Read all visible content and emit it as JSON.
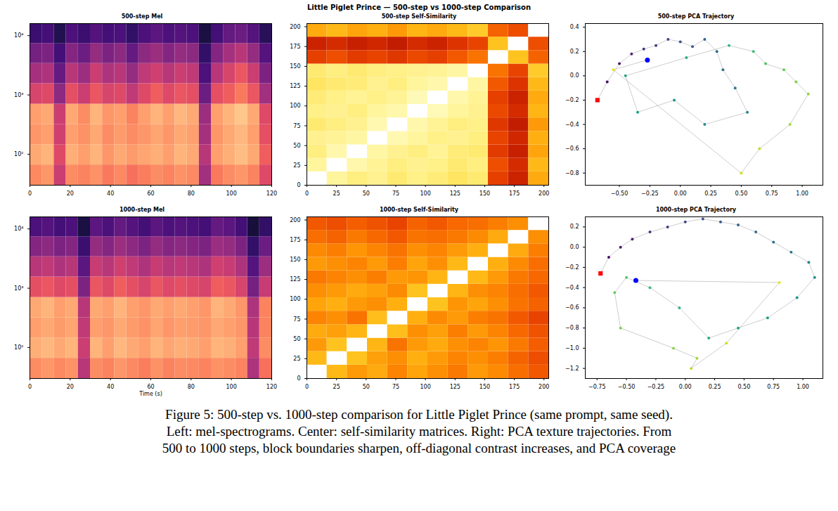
{
  "title": "Little Piglet Prince — 500-step vs 1000-step Comparison",
  "caption": [
    "Figure 5: 500-step vs. 1000-step comparison for Little Piglet Prince (same prompt, same seed).",
    "Left: mel-spectrograms. Center: self-similarity matrices. Right: PCA texture trajectories. From",
    "500 to 1000 steps, block boundaries sharpen, off-diagonal contrast increases, and PCA coverage"
  ],
  "chart_data": [
    {
      "type": "heatmap",
      "title": "500-step Mel",
      "log": "y",
      "color": "magma",
      "clim": [
        0,
        1
      ],
      "xlim": [
        0,
        120
      ],
      "xticks": [
        0,
        20,
        40,
        60,
        80,
        100,
        120
      ],
      "ylim": [
        30,
        16000
      ],
      "yticks": [
        {
          "value": 100,
          "label": "10²"
        },
        {
          "value": 1000,
          "label": "10³"
        },
        {
          "value": 10000,
          "label": "10⁴"
        }
      ],
      "x_edges": [
        0,
        6,
        12,
        18,
        24,
        30,
        36,
        42,
        48,
        54,
        60,
        66,
        72,
        78,
        84,
        90,
        96,
        102,
        108,
        114,
        120
      ],
      "y_edges": [
        30,
        66,
        145,
        320,
        700,
        1550,
        3400,
        7400,
        16000
      ],
      "cells": [
        [
          0.75,
          0.78,
          0.55,
          0.76,
          0.74,
          0.77,
          0.72,
          0.75,
          0.7,
          0.73,
          0.76,
          0.74,
          0.77,
          0.75,
          0.45,
          0.72,
          0.76,
          0.78,
          0.74,
          0.6
        ],
        [
          0.82,
          0.84,
          0.6,
          0.83,
          0.8,
          0.84,
          0.78,
          0.82,
          0.79,
          0.81,
          0.83,
          0.8,
          0.84,
          0.82,
          0.5,
          0.8,
          0.83,
          0.86,
          0.82,
          0.66
        ],
        [
          0.78,
          0.8,
          0.56,
          0.8,
          0.77,
          0.82,
          0.76,
          0.79,
          0.76,
          0.78,
          0.81,
          0.78,
          0.82,
          0.8,
          0.46,
          0.78,
          0.82,
          0.85,
          0.8,
          0.62
        ],
        [
          0.8,
          0.82,
          0.55,
          0.82,
          0.76,
          0.84,
          0.78,
          0.8,
          0.74,
          0.8,
          0.84,
          0.8,
          0.85,
          0.82,
          0.44,
          0.8,
          0.84,
          0.88,
          0.82,
          0.6
        ],
        [
          0.58,
          0.6,
          0.4,
          0.62,
          0.55,
          0.64,
          0.58,
          0.6,
          0.52,
          0.6,
          0.66,
          0.6,
          0.64,
          0.62,
          0.32,
          0.62,
          0.66,
          0.72,
          0.64,
          0.45
        ],
        [
          0.46,
          0.48,
          0.3,
          0.5,
          0.44,
          0.55,
          0.48,
          0.5,
          0.42,
          0.52,
          0.56,
          0.5,
          0.55,
          0.52,
          0.24,
          0.5,
          0.58,
          0.64,
          0.55,
          0.36
        ],
        [
          0.34,
          0.36,
          0.22,
          0.38,
          0.32,
          0.42,
          0.36,
          0.4,
          0.3,
          0.4,
          0.44,
          0.38,
          0.42,
          0.4,
          0.18,
          0.38,
          0.46,
          0.5,
          0.42,
          0.26
        ],
        [
          0.2,
          0.22,
          0.14,
          0.24,
          0.2,
          0.26,
          0.22,
          0.24,
          0.18,
          0.24,
          0.28,
          0.24,
          0.26,
          0.24,
          0.12,
          0.22,
          0.3,
          0.32,
          0.26,
          0.16
        ]
      ]
    },
    {
      "type": "heatmap",
      "title": "500-step Self-Similarity",
      "color": "hot",
      "clim": [
        0,
        1
      ],
      "xlim": [
        0,
        204
      ],
      "xticks": [
        0,
        25,
        50,
        75,
        100,
        125,
        150,
        175,
        200
      ],
      "ylim": [
        0,
        204
      ],
      "yticks": [
        0,
        25,
        50,
        75,
        100,
        125,
        150,
        175,
        200
      ],
      "x_edges": [
        0,
        17,
        34,
        51,
        68,
        85,
        102,
        119,
        136,
        153,
        170,
        187,
        204
      ],
      "y_edges": [
        0,
        17,
        34,
        51,
        68,
        85,
        102,
        119,
        136,
        153,
        170,
        187,
        204
      ],
      "cells": [
        [
          1,
          0.78,
          0.74,
          0.76,
          0.72,
          0.75,
          0.73,
          0.7,
          0.72,
          0.35,
          0.28,
          0.55
        ],
        [
          0.78,
          1,
          0.8,
          0.77,
          0.74,
          0.76,
          0.75,
          0.72,
          0.74,
          0.38,
          0.3,
          0.58
        ],
        [
          0.74,
          0.8,
          1,
          0.79,
          0.76,
          0.74,
          0.77,
          0.73,
          0.72,
          0.34,
          0.27,
          0.54
        ],
        [
          0.76,
          0.77,
          0.79,
          1,
          0.81,
          0.78,
          0.75,
          0.76,
          0.74,
          0.36,
          0.29,
          0.56
        ],
        [
          0.72,
          0.74,
          0.76,
          0.81,
          1,
          0.8,
          0.77,
          0.74,
          0.75,
          0.33,
          0.26,
          0.52
        ],
        [
          0.75,
          0.76,
          0.74,
          0.78,
          0.8,
          1,
          0.82,
          0.78,
          0.76,
          0.37,
          0.3,
          0.57
        ],
        [
          0.73,
          0.75,
          0.77,
          0.75,
          0.77,
          0.82,
          1,
          0.8,
          0.77,
          0.35,
          0.28,
          0.55
        ],
        [
          0.7,
          0.72,
          0.73,
          0.76,
          0.74,
          0.78,
          0.8,
          1,
          0.79,
          0.4,
          0.32,
          0.58
        ],
        [
          0.72,
          0.74,
          0.72,
          0.74,
          0.75,
          0.76,
          0.77,
          0.79,
          1,
          0.45,
          0.36,
          0.62
        ],
        [
          0.35,
          0.38,
          0.34,
          0.36,
          0.33,
          0.37,
          0.35,
          0.4,
          0.45,
          1,
          0.6,
          0.42
        ],
        [
          0.28,
          0.3,
          0.27,
          0.29,
          0.26,
          0.3,
          0.28,
          0.32,
          0.36,
          0.6,
          1,
          0.38
        ],
        [
          0.55,
          0.58,
          0.54,
          0.56,
          0.52,
          0.57,
          0.55,
          0.58,
          0.62,
          0.42,
          0.38,
          1
        ]
      ]
    },
    {
      "type": "scatter",
      "title": "500-step PCA Trajectory",
      "color": "viridis",
      "xlim": [
        -0.78,
        1.17
      ],
      "xticks": [
        {
          "value": -0.5,
          "label": "−0.50"
        },
        {
          "value": -0.25,
          "label": "−0.25"
        },
        {
          "value": 0,
          "label": "0.00"
        },
        {
          "value": 0.25,
          "label": "0.25"
        },
        {
          "value": 0.5,
          "label": "0.50"
        },
        {
          "value": 0.75,
          "label": "0.75"
        },
        {
          "value": 1,
          "label": "1.00"
        }
      ],
      "ylim": [
        -0.9,
        0.43
      ],
      "yticks": [
        {
          "value": -0.8,
          "label": "−0.8"
        },
        {
          "value": -0.6,
          "label": "−0.6"
        },
        {
          "value": -0.4,
          "label": "−0.4"
        },
        {
          "value": -0.2,
          "label": "−0.2"
        },
        {
          "value": 0,
          "label": "0.0"
        },
        0.2,
        0.4
      ],
      "x": [
        -0.68,
        -0.6,
        -0.5,
        -0.4,
        -0.3,
        -0.2,
        -0.1,
        0.0,
        0.1,
        0.2,
        0.3,
        0.35,
        0.45,
        0.55,
        0.2,
        -0.05,
        -0.35,
        -0.45,
        0.05,
        0.4,
        0.6,
        0.7,
        0.85,
        0.95,
        1.05,
        0.9,
        0.65,
        0.5,
        -0.55,
        -0.27
      ],
      "y": [
        -0.2,
        -0.05,
        0.1,
        0.18,
        0.22,
        0.25,
        0.3,
        0.28,
        0.24,
        0.3,
        0.2,
        0.05,
        -0.1,
        -0.3,
        -0.4,
        -0.2,
        -0.3,
        0.0,
        0.15,
        0.25,
        0.2,
        0.1,
        0.05,
        -0.05,
        -0.15,
        -0.4,
        -0.6,
        -0.8,
        0.05,
        0.13
      ],
      "markers": [
        {
          "x": -0.68,
          "y": -0.2,
          "color": "red",
          "marker": "square"
        },
        {
          "x": -0.27,
          "y": 0.13,
          "color": "blue",
          "marker": "circle"
        }
      ]
    },
    {
      "type": "heatmap",
      "title": "1000-step Mel",
      "log": "y",
      "color": "magma",
      "clim": [
        0,
        1
      ],
      "x_label": "Time (s)",
      "xlim": [
        0,
        120
      ],
      "xticks": [
        0,
        20,
        40,
        60,
        80,
        100,
        120
      ],
      "ylim": [
        30,
        16000
      ],
      "yticks": [
        {
          "value": 100,
          "label": "10²"
        },
        {
          "value": 1000,
          "label": "10³"
        },
        {
          "value": 10000,
          "label": "10⁴"
        }
      ],
      "x_edges": [
        0,
        6,
        12,
        18,
        24,
        30,
        36,
        42,
        48,
        54,
        60,
        66,
        72,
        78,
        84,
        90,
        96,
        102,
        108,
        114,
        120
      ],
      "y_edges": [
        30,
        66,
        145,
        320,
        700,
        1550,
        3400,
        7400,
        16000
      ],
      "cells": [
        [
          0.76,
          0.78,
          0.75,
          0.77,
          0.5,
          0.76,
          0.74,
          0.78,
          0.75,
          0.73,
          0.77,
          0.74,
          0.76,
          0.75,
          0.74,
          0.77,
          0.76,
          0.74,
          0.48,
          0.7
        ],
        [
          0.83,
          0.85,
          0.82,
          0.84,
          0.55,
          0.84,
          0.8,
          0.85,
          0.82,
          0.8,
          0.84,
          0.81,
          0.83,
          0.82,
          0.8,
          0.84,
          0.83,
          0.8,
          0.52,
          0.76
        ],
        [
          0.8,
          0.82,
          0.79,
          0.81,
          0.52,
          0.8,
          0.78,
          0.82,
          0.79,
          0.77,
          0.81,
          0.78,
          0.8,
          0.79,
          0.78,
          0.82,
          0.8,
          0.78,
          0.5,
          0.74
        ],
        [
          0.82,
          0.84,
          0.8,
          0.82,
          0.5,
          0.82,
          0.8,
          0.84,
          0.8,
          0.78,
          0.82,
          0.8,
          0.82,
          0.8,
          0.78,
          0.84,
          0.82,
          0.78,
          0.48,
          0.74
        ],
        [
          0.62,
          0.64,
          0.6,
          0.62,
          0.36,
          0.64,
          0.6,
          0.66,
          0.62,
          0.58,
          0.64,
          0.6,
          0.62,
          0.6,
          0.58,
          0.66,
          0.64,
          0.58,
          0.34,
          0.54
        ],
        [
          0.5,
          0.52,
          0.48,
          0.5,
          0.28,
          0.54,
          0.5,
          0.56,
          0.52,
          0.48,
          0.54,
          0.5,
          0.52,
          0.5,
          0.48,
          0.56,
          0.54,
          0.48,
          0.26,
          0.44
        ],
        [
          0.38,
          0.4,
          0.36,
          0.38,
          0.2,
          0.42,
          0.38,
          0.44,
          0.4,
          0.36,
          0.42,
          0.38,
          0.4,
          0.38,
          0.36,
          0.44,
          0.42,
          0.36,
          0.18,
          0.32
        ],
        [
          0.24,
          0.26,
          0.22,
          0.24,
          0.12,
          0.28,
          0.24,
          0.3,
          0.26,
          0.22,
          0.28,
          0.24,
          0.26,
          0.24,
          0.22,
          0.3,
          0.28,
          0.22,
          0.11,
          0.18
        ]
      ]
    },
    {
      "type": "heatmap",
      "title": "1000-step Self-Similarity",
      "color": "hot",
      "clim": [
        0,
        1
      ],
      "xlim": [
        0,
        204
      ],
      "xticks": [
        0,
        25,
        50,
        75,
        100,
        125,
        150,
        175,
        200
      ],
      "ylim": [
        0,
        204
      ],
      "yticks": [
        0,
        25,
        50,
        75,
        100,
        125,
        150,
        175,
        200
      ],
      "x_edges": [
        0,
        17,
        34,
        51,
        68,
        85,
        102,
        119,
        136,
        153,
        170,
        187,
        204
      ],
      "y_edges": [
        0,
        17,
        34,
        51,
        68,
        85,
        102,
        119,
        136,
        153,
        170,
        187,
        204
      ],
      "cells": [
        [
          1,
          0.58,
          0.52,
          0.55,
          0.48,
          0.54,
          0.5,
          0.46,
          0.52,
          0.49,
          0.44,
          0.4
        ],
        [
          0.58,
          1,
          0.6,
          0.53,
          0.5,
          0.56,
          0.52,
          0.48,
          0.5,
          0.47,
          0.42,
          0.38
        ],
        [
          0.52,
          0.6,
          1,
          0.57,
          0.45,
          0.52,
          0.55,
          0.5,
          0.48,
          0.51,
          0.46,
          0.41
        ],
        [
          0.55,
          0.53,
          0.57,
          1,
          0.59,
          0.5,
          0.53,
          0.47,
          0.52,
          0.48,
          0.43,
          0.39
        ],
        [
          0.48,
          0.5,
          0.45,
          0.59,
          1,
          0.56,
          0.49,
          0.52,
          0.47,
          0.45,
          0.4,
          0.36
        ],
        [
          0.54,
          0.56,
          0.52,
          0.5,
          0.56,
          1,
          0.6,
          0.51,
          0.54,
          0.5,
          0.45,
          0.42
        ],
        [
          0.5,
          0.52,
          0.55,
          0.53,
          0.49,
          0.6,
          1,
          0.57,
          0.5,
          0.48,
          0.44,
          0.4
        ],
        [
          0.46,
          0.48,
          0.5,
          0.47,
          0.52,
          0.51,
          0.57,
          1,
          0.58,
          0.52,
          0.46,
          0.43
        ],
        [
          0.52,
          0.5,
          0.48,
          0.52,
          0.47,
          0.54,
          0.5,
          0.58,
          1,
          0.56,
          0.49,
          0.44
        ],
        [
          0.49,
          0.47,
          0.51,
          0.48,
          0.45,
          0.5,
          0.48,
          0.52,
          0.56,
          1,
          0.55,
          0.47
        ],
        [
          0.44,
          0.42,
          0.46,
          0.43,
          0.4,
          0.45,
          0.44,
          0.46,
          0.49,
          0.55,
          1,
          0.5
        ],
        [
          0.4,
          0.38,
          0.41,
          0.39,
          0.36,
          0.42,
          0.4,
          0.43,
          0.44,
          0.47,
          0.5,
          1
        ]
      ]
    },
    {
      "type": "scatter",
      "title": "1000-step PCA Trajectory",
      "color": "viridis",
      "xlim": [
        -0.85,
        1.17
      ],
      "xticks": [
        {
          "value": -0.75,
          "label": "−0.75"
        },
        {
          "value": -0.5,
          "label": "−0.50"
        },
        {
          "value": -0.25,
          "label": "−0.25"
        },
        {
          "value": 0,
          "label": "0.00"
        },
        {
          "value": 0.25,
          "label": "0.25"
        },
        {
          "value": 0.5,
          "label": "0.50"
        },
        {
          "value": 0.75,
          "label": "0.75"
        },
        {
          "value": 1,
          "label": "1.00"
        }
      ],
      "ylim": [
        -1.3,
        0.3
      ],
      "yticks": [
        {
          "value": -1.2,
          "label": "−1.2"
        },
        {
          "value": -1,
          "label": "−1.0"
        },
        {
          "value": -0.8,
          "label": "−0.8"
        },
        {
          "value": -0.6,
          "label": "−0.6"
        },
        {
          "value": -0.4,
          "label": "−0.4"
        },
        {
          "value": -0.2,
          "label": "−0.2"
        },
        {
          "value": 0,
          "label": "0.0"
        },
        0.2
      ],
      "x": [
        -0.72,
        -0.65,
        -0.55,
        -0.45,
        -0.3,
        -0.15,
        0.0,
        0.15,
        0.3,
        0.45,
        0.6,
        0.75,
        0.9,
        1.05,
        1.1,
        0.95,
        0.7,
        0.45,
        0.2,
        -0.05,
        -0.3,
        -0.5,
        -0.6,
        -0.55,
        -0.1,
        0.1,
        0.05,
        0.35,
        0.8,
        -0.42
      ],
      "y": [
        -0.26,
        -0.1,
        0.0,
        0.08,
        0.15,
        0.2,
        0.25,
        0.28,
        0.25,
        0.22,
        0.15,
        0.05,
        -0.05,
        -0.15,
        -0.3,
        -0.5,
        -0.7,
        -0.8,
        -0.9,
        -0.6,
        -0.4,
        -0.3,
        -0.45,
        -0.8,
        -1.0,
        -1.1,
        -1.2,
        -0.95,
        -0.35,
        -0.33
      ],
      "markers": [
        {
          "x": -0.72,
          "y": -0.26,
          "color": "red",
          "marker": "square"
        },
        {
          "x": -0.42,
          "y": -0.33,
          "color": "blue",
          "marker": "circle"
        }
      ]
    }
  ]
}
